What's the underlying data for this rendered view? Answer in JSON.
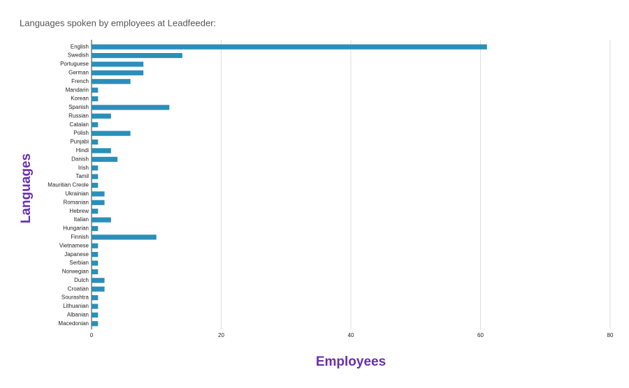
{
  "chart_data": {
    "type": "bar",
    "orientation": "horizontal",
    "title": "Languages spoken by employees at Leadfeeder:",
    "x_label": "Employees",
    "y_label": "Languages",
    "categories": [
      "English",
      "Swedish",
      "Portuguese",
      "German",
      "French",
      "Mandarin",
      "Korean",
      "Spanish",
      "Russian",
      "Catalan",
      "Polish",
      "Punjabi",
      "Hindi",
      "Danish",
      "Irish",
      "Tamil",
      "Mauritian Creole",
      "Ukrainian",
      "Romanian",
      "Hebrew",
      "Italian",
      "Hungarian",
      "Finnish",
      "Vietnamese",
      "Japanese",
      "Serbian",
      "Norwegian",
      "Dutch",
      "Croatian",
      "Sourashtra",
      "Lithuanian",
      "Albanian",
      "Macedonian"
    ],
    "values": [
      61,
      14,
      8,
      8,
      6,
      1,
      1,
      12,
      3,
      1,
      6,
      1,
      3,
      4,
      1,
      1,
      1,
      2,
      2,
      1,
      3,
      1,
      10,
      1,
      1,
      1,
      1,
      2,
      2,
      1,
      1,
      1,
      1
    ],
    "color": "#2a8fb9",
    "xlim": [
      0,
      80
    ],
    "xticks": [
      0,
      20,
      40,
      60,
      80
    ],
    "grid": true
  }
}
